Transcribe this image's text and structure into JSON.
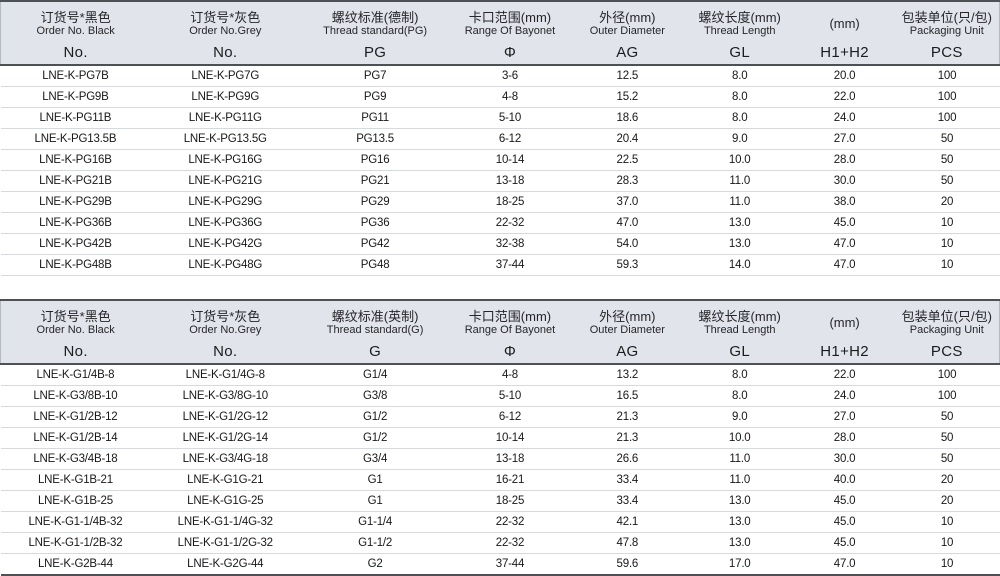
{
  "colors": {
    "header_bg": "#e1e4ea",
    "border_dark": "#4d5156",
    "row_line": "#d7d9dc",
    "text": "#17181a"
  },
  "tables": [
    {
      "id": "pg-table",
      "columns": [
        {
          "id": "order-no-black",
          "cn": "订货号*黑色",
          "en": "Order No. Black",
          "symbol": "No."
        },
        {
          "id": "order-no-grey",
          "cn": "订货号*灰色",
          "en": "Order No.Grey",
          "symbol": "No."
        },
        {
          "id": "thread-standard",
          "cn": "螺纹标准(德制)",
          "en": "Thread standard(PG)",
          "symbol": "PG"
        },
        {
          "id": "bayonet-range",
          "cn": "卡口范围(mm)",
          "en": "Range Of Bayonet",
          "symbol": "Φ"
        },
        {
          "id": "outer-diameter",
          "cn": "外径(mm)",
          "en": "Outer Diameter",
          "symbol": "AG"
        },
        {
          "id": "thread-length",
          "cn": "螺纹长度(mm)",
          "en": "Thread Length",
          "symbol": "GL"
        },
        {
          "id": "h1-h2",
          "cn": "(mm)",
          "en": "",
          "symbol": "H1+H2"
        },
        {
          "id": "packaging-unit",
          "cn": "包装单位(只/包)",
          "en": "Packaging Unit",
          "symbol": "PCS"
        }
      ],
      "rows": [
        [
          "LNE-K-PG7B",
          "LNE-K-PG7G",
          "PG7",
          "3-6",
          "12.5",
          "8.0",
          "20.0",
          "100"
        ],
        [
          "LNE-K-PG9B",
          "LNE-K-PG9G",
          "PG9",
          "4-8",
          "15.2",
          "8.0",
          "22.0",
          "100"
        ],
        [
          "LNE-K-PG11B",
          "LNE-K-PG11G",
          "PG11",
          "5-10",
          "18.6",
          "8.0",
          "24.0",
          "100"
        ],
        [
          "LNE-K-PG13.5B",
          "LNE-K-PG13.5G",
          "PG13.5",
          "6-12",
          "20.4",
          "9.0",
          "27.0",
          "50"
        ],
        [
          "LNE-K-PG16B",
          "LNE-K-PG16G",
          "PG16",
          "10-14",
          "22.5",
          "10.0",
          "28.0",
          "50"
        ],
        [
          "LNE-K-PG21B",
          "LNE-K-PG21G",
          "PG21",
          "13-18",
          "28.3",
          "11.0",
          "30.0",
          "50"
        ],
        [
          "LNE-K-PG29B",
          "LNE-K-PG29G",
          "PG29",
          "18-25",
          "37.0",
          "11.0",
          "38.0",
          "20"
        ],
        [
          "LNE-K-PG36B",
          "LNE-K-PG36G",
          "PG36",
          "22-32",
          "47.0",
          "13.0",
          "45.0",
          "10"
        ],
        [
          "LNE-K-PG42B",
          "LNE-K-PG42G",
          "PG42",
          "32-38",
          "54.0",
          "13.0",
          "47.0",
          "10"
        ],
        [
          "LNE-K-PG48B",
          "LNE-K-PG48G",
          "PG48",
          "37-44",
          "59.3",
          "14.0",
          "47.0",
          "10"
        ]
      ]
    },
    {
      "id": "g-table",
      "columns": [
        {
          "id": "order-no-black",
          "cn": "订货号*黑色",
          "en": "Order No. Black",
          "symbol": "No."
        },
        {
          "id": "order-no-grey",
          "cn": "订货号*灰色",
          "en": "Order No.Grey",
          "symbol": "No."
        },
        {
          "id": "thread-standard",
          "cn": "螺纹标准(英制)",
          "en": "Thread standard(G)",
          "symbol": "G"
        },
        {
          "id": "bayonet-range",
          "cn": "卡口范围(mm)",
          "en": "Range Of Bayonet",
          "symbol": "Φ"
        },
        {
          "id": "outer-diameter",
          "cn": "外径(mm)",
          "en": "Outer Diameter",
          "symbol": "AG"
        },
        {
          "id": "thread-length",
          "cn": "螺纹长度(mm)",
          "en": "Thread Length",
          "symbol": "GL"
        },
        {
          "id": "h1-h2",
          "cn": "(mm)",
          "en": "",
          "symbol": "H1+H2"
        },
        {
          "id": "packaging-unit",
          "cn": "包装单位(只/包)",
          "en": "Packaging Unit",
          "symbol": "PCS"
        }
      ],
      "rows": [
        [
          "LNE-K-G1/4B-8",
          "LNE-K-G1/4G-8",
          "G1/4",
          "4-8",
          "13.2",
          "8.0",
          "22.0",
          "100"
        ],
        [
          "LNE-K-G3/8B-10",
          "LNE-K-G3/8G-10",
          "G3/8",
          "5-10",
          "16.5",
          "8.0",
          "24.0",
          "100"
        ],
        [
          "LNE-K-G1/2B-12",
          "LNE-K-G1/2G-12",
          "G1/2",
          "6-12",
          "21.3",
          "9.0",
          "27.0",
          "50"
        ],
        [
          "LNE-K-G1/2B-14",
          "LNE-K-G1/2G-14",
          "G1/2",
          "10-14",
          "21.3",
          "10.0",
          "28.0",
          "50"
        ],
        [
          "LNE-K-G3/4B-18",
          "LNE-K-G3/4G-18",
          "G3/4",
          "13-18",
          "26.6",
          "11.0",
          "30.0",
          "50"
        ],
        [
          "LNE-K-G1B-21",
          "LNE-K-G1G-21",
          "G1",
          "16-21",
          "33.4",
          "11.0",
          "40.0",
          "20"
        ],
        [
          "LNE-K-G1B-25",
          "LNE-K-G1G-25",
          "G1",
          "18-25",
          "33.4",
          "13.0",
          "45.0",
          "20"
        ],
        [
          "LNE-K-G1-1/4B-32",
          "LNE-K-G1-1/4G-32",
          "G1-1/4",
          "22-32",
          "42.1",
          "13.0",
          "45.0",
          "10"
        ],
        [
          "LNE-K-G1-1/2B-32",
          "LNE-K-G1-1/2G-32",
          "G1-1/2",
          "22-32",
          "47.8",
          "13.0",
          "45.0",
          "10"
        ],
        [
          "LNE-K-G2B-44",
          "LNE-K-G2G-44",
          "G2",
          "37-44",
          "59.6",
          "17.0",
          "47.0",
          "10"
        ]
      ]
    }
  ]
}
